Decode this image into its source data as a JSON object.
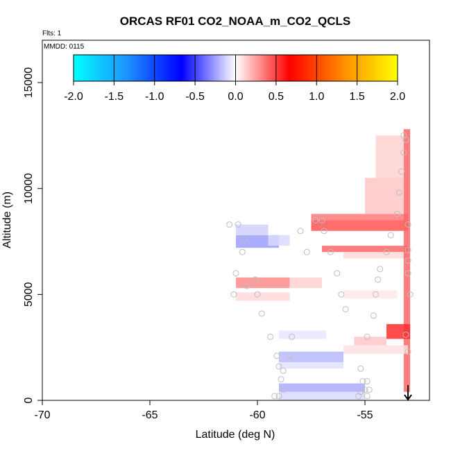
{
  "chart_data": {
    "type": "heatmap",
    "title": "ORCAS RF01 CO2_NOAA_m_CO2_QCLS",
    "annotations": [
      "Flts: 1",
      "MMDD: 0115"
    ],
    "xlabel": "Latitude (deg N)",
    "ylabel": "Altitude (m)",
    "xlim": [
      -70,
      -52
    ],
    "ylim": [
      0,
      17000
    ],
    "xticks": [
      -70,
      -65,
      -60,
      -55
    ],
    "yticks": [
      0,
      5000,
      10000,
      15000
    ],
    "colorbar": {
      "range": [
        -2.0,
        2.0
      ],
      "ticks": [
        "-2.0",
        "-1.5",
        "-1.0",
        "-0.5",
        "0.0",
        "0.5",
        "1.0",
        "1.5",
        "2.0"
      ],
      "colors": [
        "#00ffff",
        "#1e90ff",
        "#0000ff",
        "#ffffff",
        "#ff0000",
        "#ff8c00",
        "#ffff00"
      ]
    },
    "cells": [
      {
        "lat0": -61.0,
        "lat1": -59.0,
        "alt0": 7200,
        "alt1": 7800,
        "value": -0.25
      },
      {
        "lat0": -61.0,
        "lat1": -59.5,
        "alt0": 7800,
        "alt1": 8300,
        "value": -0.12
      },
      {
        "lat0": -59.5,
        "lat1": -58.5,
        "alt0": 7300,
        "alt1": 7800,
        "value": -0.1
      },
      {
        "lat0": -61.0,
        "lat1": -58.5,
        "alt0": 5300,
        "alt1": 5800,
        "value": 0.3
      },
      {
        "lat0": -58.5,
        "lat1": -57.0,
        "alt0": 5300,
        "alt1": 5800,
        "value": 0.12
      },
      {
        "lat0": -61.0,
        "lat1": -58.5,
        "alt0": 4700,
        "alt1": 5100,
        "value": 0.1
      },
      {
        "lat0": -59.0,
        "lat1": -56.8,
        "alt0": 2900,
        "alt1": 3300,
        "value": -0.06
      },
      {
        "lat0": -59.0,
        "lat1": -56.0,
        "alt0": 1800,
        "alt1": 2300,
        "value": -0.18
      },
      {
        "lat0": -59.0,
        "lat1": -56.0,
        "alt0": 1500,
        "alt1": 1800,
        "value": -0.08
      },
      {
        "lat0": -59.0,
        "lat1": -55.0,
        "alt0": 400,
        "alt1": 800,
        "value": -0.22
      },
      {
        "lat0": -59.0,
        "lat1": -55.0,
        "alt0": 0,
        "alt1": 400,
        "value": -0.1
      },
      {
        "lat0": -57.5,
        "lat1": -53.0,
        "alt0": 8500,
        "alt1": 8800,
        "value": 0.35
      },
      {
        "lat0": -57.5,
        "lat1": -53.0,
        "alt0": 8000,
        "alt1": 8500,
        "value": 0.45
      },
      {
        "lat0": -57.0,
        "lat1": -53.0,
        "alt0": 7000,
        "alt1": 7300,
        "value": 0.4
      },
      {
        "lat0": -56.0,
        "lat1": -53.0,
        "alt0": 6700,
        "alt1": 7000,
        "value": 0.1
      },
      {
        "lat0": -53.2,
        "lat1": -52.9,
        "alt0": 400,
        "alt1": 12800,
        "value": 0.4
      },
      {
        "lat0": -55.0,
        "lat1": -53.2,
        "alt0": 8800,
        "alt1": 10500,
        "value": 0.15
      },
      {
        "lat0": -54.5,
        "lat1": -53.2,
        "alt0": 10500,
        "alt1": 12500,
        "value": 0.12
      },
      {
        "lat0": -54.0,
        "lat1": -52.9,
        "alt0": 2900,
        "alt1": 3600,
        "value": 0.55
      },
      {
        "lat0": -55.5,
        "lat1": -54.0,
        "alt0": 2600,
        "alt1": 3000,
        "value": 0.15
      },
      {
        "lat0": -56.0,
        "lat1": -53.0,
        "alt0": 2200,
        "alt1": 2600,
        "value": 0.08
      },
      {
        "lat0": -56.0,
        "lat1": -53.5,
        "alt0": 4800,
        "alt1": 5200,
        "value": 0.06
      }
    ],
    "points": [
      [
        -53.2,
        12500
      ],
      [
        -53.1,
        12300
      ],
      [
        -53.2,
        11700
      ],
      [
        -53.3,
        10800
      ],
      [
        -53.4,
        9800
      ],
      [
        -53.5,
        8800
      ],
      [
        -53.0,
        8300
      ],
      [
        -53.8,
        7800
      ],
      [
        -53.0,
        7100
      ],
      [
        -54.0,
        7000
      ],
      [
        -53.0,
        6600
      ],
      [
        -54.3,
        6200
      ],
      [
        -53.0,
        6000
      ],
      [
        -54.4,
        5700
      ],
      [
        -54.5,
        5000
      ],
      [
        -52.9,
        5000
      ],
      [
        -54.6,
        4000
      ],
      [
        -53.1,
        3100
      ],
      [
        -54.9,
        3000
      ],
      [
        -53.0,
        2300
      ],
      [
        -54.9,
        900
      ],
      [
        -55.2,
        1500
      ],
      [
        -55.1,
        900
      ],
      [
        -55.0,
        500
      ],
      [
        -54.8,
        500
      ],
      [
        -54.9,
        200
      ],
      [
        -55.2,
        400
      ],
      [
        -55.3,
        200
      ],
      [
        -55.9,
        4300
      ],
      [
        -56.1,
        5000
      ],
      [
        -56.3,
        6000
      ],
      [
        -56.6,
        7000
      ],
      [
        -56.9,
        8000
      ],
      [
        -57.3,
        8500
      ],
      [
        -57.0,
        8500
      ],
      [
        -57.7,
        7000
      ],
      [
        -58.0,
        8000
      ],
      [
        -58.4,
        3000
      ],
      [
        -58.5,
        2100
      ],
      [
        -59.0,
        1600
      ],
      [
        -58.8,
        1400
      ],
      [
        -58.9,
        1000
      ],
      [
        -58.8,
        500
      ],
      [
        -59.0,
        200
      ],
      [
        -59.2,
        200
      ],
      [
        -59.1,
        2100
      ],
      [
        -59.4,
        3000
      ],
      [
        -59.8,
        4100
      ],
      [
        -60.0,
        5000
      ],
      [
        -60.1,
        5700
      ],
      [
        -61.1,
        5000
      ],
      [
        -61.0,
        6000
      ],
      [
        -60.7,
        7000
      ],
      [
        -60.6,
        7600
      ],
      [
        -60.9,
        8300
      ],
      [
        -61.3,
        8300
      ],
      [
        -60.5,
        5400
      ]
    ],
    "marker": {
      "lat": -53.0,
      "alt": 0,
      "glyph": "down-arrow"
    }
  }
}
